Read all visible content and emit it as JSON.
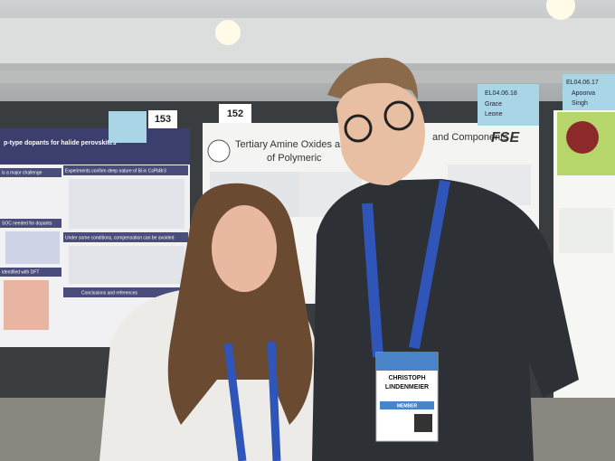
{
  "signs": {
    "left_number": "153",
    "middle_number": "152",
    "grace": {
      "code": "EL04.06.18",
      "first": "Grace",
      "last": "Leone"
    },
    "apoorva": {
      "code": "EL04.06.17",
      "first": "Apoorva",
      "last": "Singh"
    }
  },
  "left_poster": {
    "title": "p-type dopants for halide perovskites",
    "section_1": "is a major challenge",
    "section_2": "Experiments confirm deep nature of Bi in CsPbBr3",
    "section_3": "SOC needed for dopants",
    "section_4": "Under some conditions, compensation can be avoided",
    "section_5": "identified with DFT",
    "section_6": "Conclusions and references"
  },
  "middle_poster": {
    "title_part_1": "Tertiary Amine Oxides as Perovskite",
    "title_part_2": "and Components",
    "title_part_3": "of Polymeric",
    "logo": "FSE"
  },
  "badge": {
    "first_name": "CHRISTOPH",
    "last_name": "LINDENMEIER",
    "type": "MEMBER"
  }
}
